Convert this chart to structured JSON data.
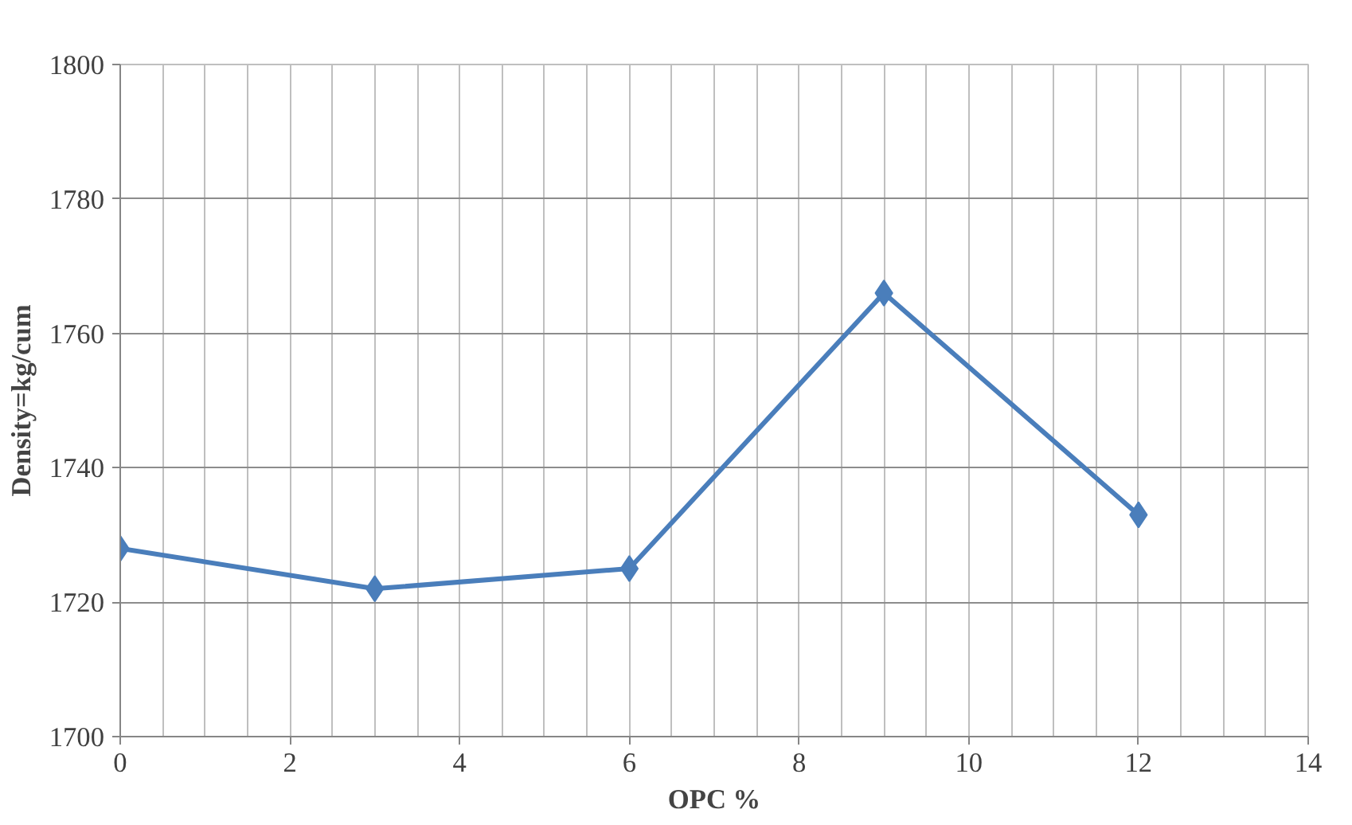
{
  "chart_data": {
    "type": "line",
    "xlabel": "OPC %",
    "ylabel": "Density=kg/cum",
    "x": [
      0,
      3,
      6,
      9,
      12
    ],
    "series": [
      {
        "color": "#4a7ebb",
        "values": [
          1728,
          1722,
          1725,
          1766,
          1733
        ]
      }
    ],
    "xlim": [
      0,
      14
    ],
    "xticks": [
      0,
      2,
      4,
      6,
      8,
      10,
      12,
      14
    ],
    "ylim": [
      1700,
      1800
    ],
    "yticks": [
      1700,
      1720,
      1740,
      1760,
      1780,
      1800
    ],
    "grid": true,
    "marker": "diamond",
    "line_style": "solid"
  }
}
